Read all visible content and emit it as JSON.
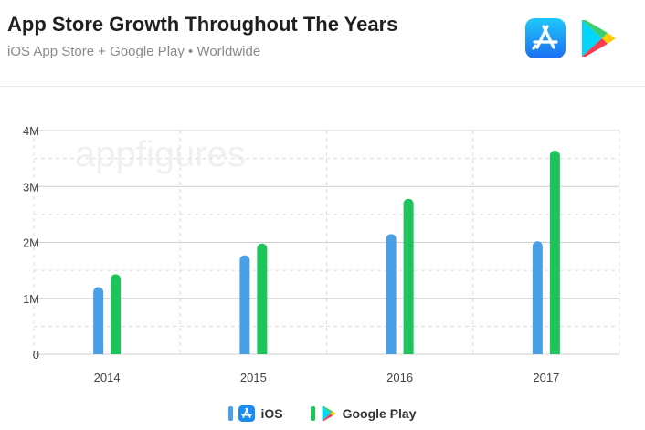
{
  "header": {
    "title": "App Store Growth Throughout The Years",
    "subtitle": "iOS App Store + Google Play • Worldwide"
  },
  "watermark": "appfigures",
  "colors": {
    "ios": "#4a9fe6",
    "google_play": "#1fc35c"
  },
  "icons": {
    "app_store": "app-store-icon",
    "google_play": "google-play-icon"
  },
  "chart_data": {
    "type": "bar",
    "categories": [
      "2014",
      "2015",
      "2016",
      "2017"
    ],
    "series": [
      {
        "name": "iOS",
        "values": [
          1.2,
          1.77,
          2.15,
          2.02
        ]
      },
      {
        "name": "Google Play",
        "values": [
          1.43,
          1.98,
          2.78,
          3.64
        ]
      }
    ],
    "ylim": [
      0,
      4
    ],
    "y_ticks": [
      0,
      1,
      2,
      3,
      4
    ],
    "y_tick_labels": [
      "0",
      "1M",
      "2M",
      "3M",
      "4M"
    ],
    "grid": true,
    "legend_position": "bottom"
  },
  "legend": {
    "ios_label": "iOS",
    "google_play_label": "Google Play"
  }
}
